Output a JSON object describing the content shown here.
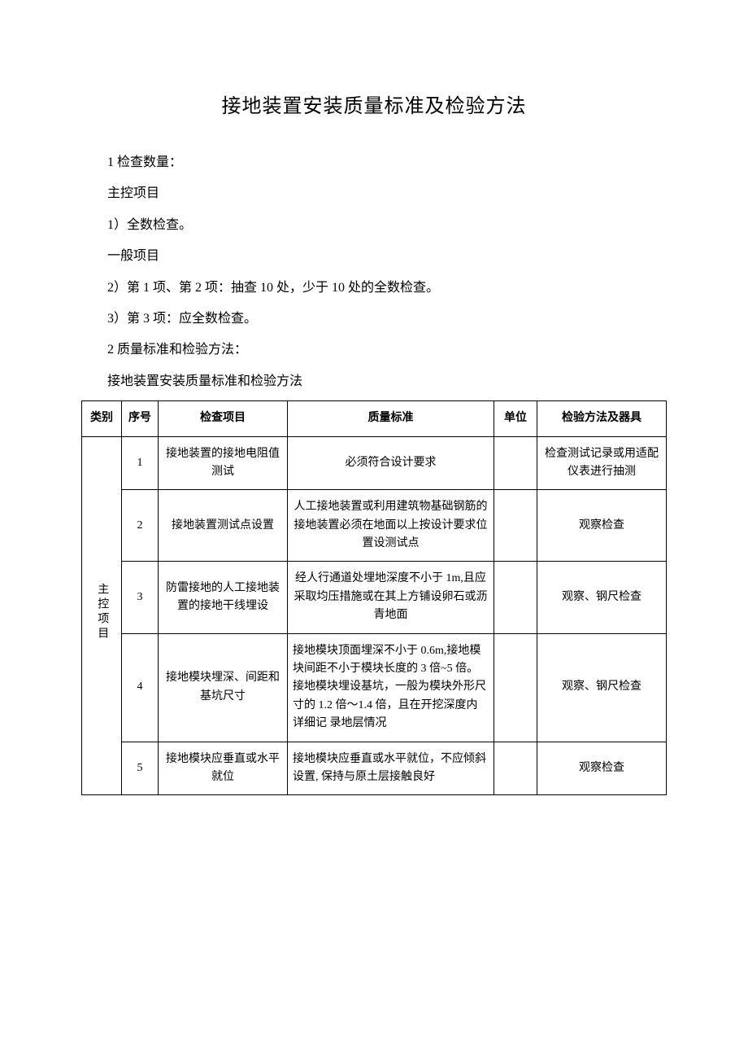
{
  "title": "接地装置安装质量标准及检验方法",
  "body": {
    "p1": "1 检查数量：",
    "p2": "主控项目",
    "p3": "1）全数检查。",
    "p4": "一般项目",
    "p5": "2）第 1 项、第 2 项：抽查 10 处，少于 10 处的全数检查。",
    "p6": "3）第 3 项：应全数检查。",
    "p7": "2 质量标准和检验方法：",
    "p8": "接地装置安装质量标准和检验方法"
  },
  "table": {
    "headers": {
      "category": "类别",
      "seq": "序号",
      "item": "检查项目",
      "standard": "质量标准",
      "unit": "单位",
      "method": "检验方法及器具"
    },
    "category_label": "主控项目",
    "rows": [
      {
        "seq": "1",
        "item": "接地装置的接地电阻值测试",
        "standard": "必须符合设计要求",
        "unit": "",
        "method": "检查测试记录或用适配仪表进行抽测"
      },
      {
        "seq": "2",
        "item": "接地装置测试点设置",
        "standard": "人工接地装置或利用建筑物基础钢筋的接地装置必须在地面以上按设计要求位置设测试点",
        "unit": "",
        "method": "观察检查"
      },
      {
        "seq": "3",
        "item": "防雷接地的人工接地装置的接地干线埋设",
        "standard": "经人行通道处埋地深度不小于 1m,且应采取均压措施或在其上方铺设卵石或沥青地面",
        "unit": "",
        "method": "观察、钢尺检查"
      },
      {
        "seq": "4",
        "item": "接地模块埋深、间距和基坑尺寸",
        "standard": "接地模块顶面埋深不小于 0.6m,接地模块间距不小于模块长度的 3 倍~5 倍。接地模块埋设基坑，一般为模块外形尺寸的 1.2 倍～1.4 倍，且在开挖深度内详细记\n录地层情况",
        "unit": "",
        "method": "观察、钢尺检查"
      },
      {
        "seq": "5",
        "item": "接地模块应垂直或水平就位",
        "standard": "接地模块应垂直或水平就位，不应倾斜设置, 保持与原土层接触良好",
        "unit": "",
        "method": "观察检查"
      }
    ]
  },
  "style": {
    "page_bg": "#ffffff",
    "text_color": "#000000",
    "border_color": "#000000",
    "title_fontsize": 24,
    "body_fontsize": 16,
    "table_fontsize": 14,
    "font_family": "SimSun"
  }
}
